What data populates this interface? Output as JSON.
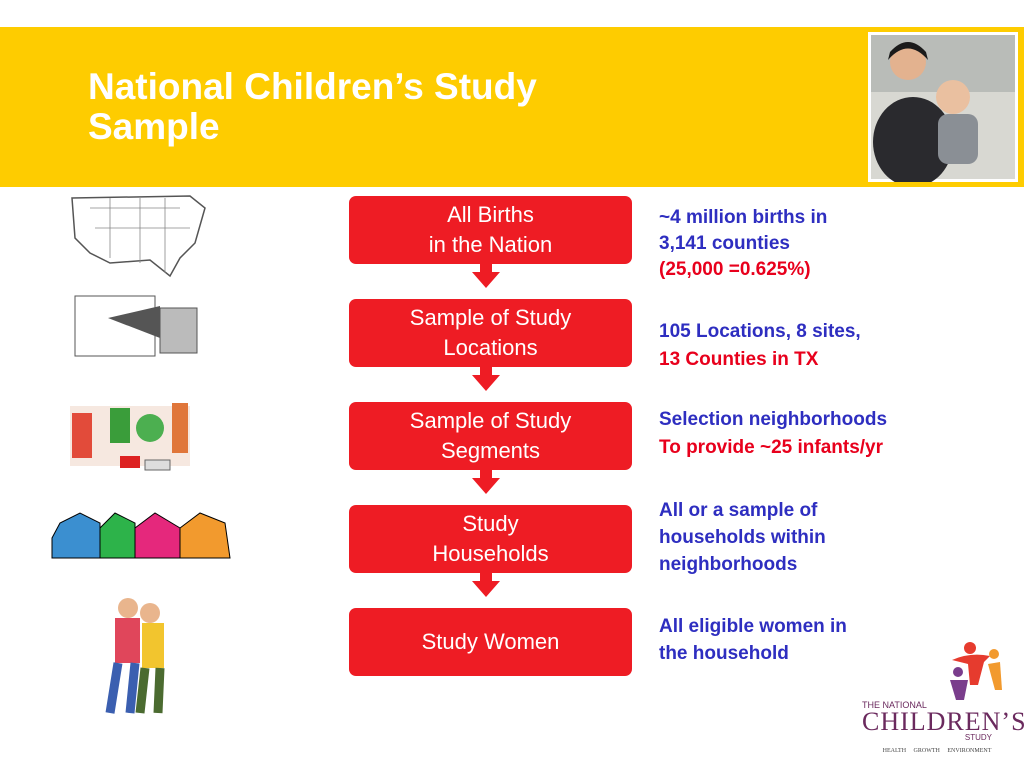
{
  "header": {
    "title_lines": [
      "National Children’s Study",
      "Sample"
    ]
  },
  "steps": [
    {
      "lines": [
        "All Births",
        "in the Nation"
      ]
    },
    {
      "lines": [
        "Sample of Study",
        "Locations"
      ]
    },
    {
      "lines": [
        "Sample of Study",
        "Segments"
      ]
    },
    {
      "lines": [
        "Study",
        "Households"
      ]
    },
    {
      "lines": [
        "Study Women"
      ]
    }
  ],
  "notes": [
    {
      "lines": [
        "~4 million births in",
        "3,141 counties",
        "(25,000 =0.625%)"
      ]
    },
    {
      "lines": [
        "105 Locations, 8 sites,",
        "13 Counties in TX"
      ]
    },
    {
      "lines": [
        "Selection neighborhoods",
        "To provide ~25 infants/yr"
      ]
    },
    {
      "lines": [
        "All or a sample of",
        "households within",
        "neighborhoods"
      ]
    },
    {
      "lines": [
        "All eligible women in",
        "the household"
      ]
    }
  ],
  "logo": {
    "line1": "THE NATIONAL",
    "line2": "CHILDREN’S",
    "line3": "STUDY",
    "tagline": "HEALTH GROWTH ENVIRONMENT"
  }
}
